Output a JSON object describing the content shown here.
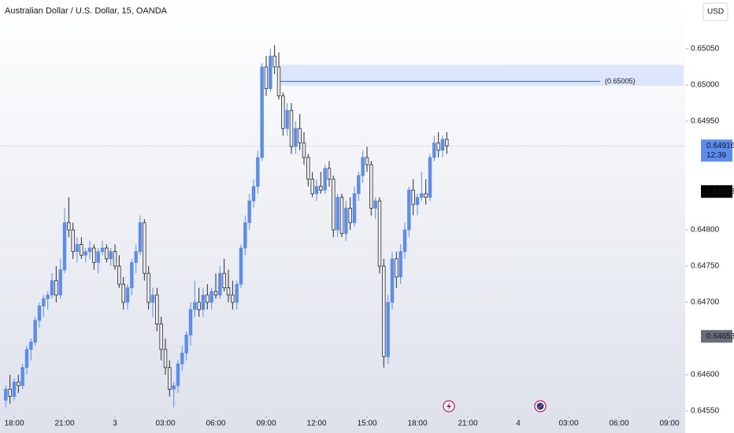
{
  "chart_data": {
    "type": "candlestick",
    "title": "Australian Dollar / U.S. Dollar, 15, OANDA",
    "currency": "USD",
    "up_color": "#5b8def",
    "down_color": "#eceef2",
    "outline_color": "#2a2a2a",
    "xlim": [
      -1.375,
      161.75
    ],
    "ylim": [
      0.645435,
      0.651174
    ],
    "xticks": [
      {
        "value": 2,
        "label": "18:00"
      },
      {
        "value": 14,
        "label": "21:00"
      },
      {
        "value": 26,
        "label": "3"
      },
      {
        "value": 38,
        "label": "03:00"
      },
      {
        "value": 50,
        "label": "06:00"
      },
      {
        "value": 62,
        "label": "09:00"
      },
      {
        "value": 74,
        "label": "12:00"
      },
      {
        "value": 86,
        "label": "15:00"
      },
      {
        "value": 98,
        "label": "18:00"
      },
      {
        "value": 110,
        "label": "21:00"
      },
      {
        "value": 122,
        "label": "4"
      },
      {
        "value": 134,
        "label": "03:00"
      },
      {
        "value": 146,
        "label": "06:00"
      },
      {
        "value": 158,
        "label": "09:00"
      }
    ],
    "yticks": [
      {
        "value": 0.6505,
        "label": "0.65050"
      },
      {
        "value": 0.65,
        "label": "0.65000"
      },
      {
        "value": 0.6495,
        "label": "0.64950"
      },
      {
        "value": 0.648,
        "label": "0.64800"
      },
      {
        "value": 0.6475,
        "label": "0.64750"
      },
      {
        "value": 0.647,
        "label": "0.64700"
      },
      {
        "value": 0.646,
        "label": "0.64600"
      },
      {
        "value": 0.6455,
        "label": "0.64550"
      }
    ],
    "open": [
      0.64565,
      0.6458,
      0.6457,
      0.6459,
      0.64585,
      0.6461,
      0.64635,
      0.64645,
      0.64675,
      0.64695,
      0.64705,
      0.6471,
      0.6473,
      0.6471,
      0.64745,
      0.6481,
      0.648,
      0.6477,
      0.6478,
      0.64765,
      0.6477,
      0.64775,
      0.64755,
      0.6477,
      0.64775,
      0.6476,
      0.6477,
      0.6475,
      0.64725,
      0.647,
      0.6472,
      0.64755,
      0.6477,
      0.6481,
      0.6474,
      0.647,
      0.6471,
      0.6467,
      0.64635,
      0.6461,
      0.6458,
      0.64585,
      0.64615,
      0.6463,
      0.64655,
      0.6469,
      0.647,
      0.6469,
      0.6471,
      0.647,
      0.64715,
      0.6471,
      0.6474,
      0.6472,
      0.6471,
      0.647,
      0.64725,
      0.64775,
      0.6481,
      0.6484,
      0.6486,
      0.649,
      0.65025,
      0.64995,
      0.6504,
      0.65025,
      0.64985,
      0.6494,
      0.64965,
      0.64915,
      0.6494,
      0.6492,
      0.649,
      0.6487,
      0.6485,
      0.6486,
      0.64855,
      0.64885,
      0.6487,
      0.648,
      0.64845,
      0.64795,
      0.6483,
      0.6481,
      0.6485,
      0.64875,
      0.649,
      0.6489,
      0.6483,
      0.6484,
      0.6475,
      0.64625,
      0.647,
      0.6476,
      0.64735,
      0.6477,
      0.648,
      0.64855,
      0.64835,
      0.64845,
      0.6485,
      0.64845,
      0.649,
      0.6492,
      0.6491,
      0.64925
    ],
    "high": [
      0.64585,
      0.646,
      0.64595,
      0.646,
      0.64615,
      0.6464,
      0.6465,
      0.6468,
      0.647,
      0.6471,
      0.64715,
      0.6474,
      0.6475,
      0.6476,
      0.6483,
      0.64845,
      0.6481,
      0.6479,
      0.6479,
      0.64775,
      0.64785,
      0.6478,
      0.64775,
      0.64785,
      0.6478,
      0.64775,
      0.6478,
      0.64765,
      0.64735,
      0.64725,
      0.6476,
      0.6478,
      0.6482,
      0.64815,
      0.6475,
      0.6472,
      0.6472,
      0.6468,
      0.6465,
      0.6462,
      0.6459,
      0.6462,
      0.6464,
      0.6466,
      0.647,
      0.6473,
      0.6472,
      0.6472,
      0.64725,
      0.6472,
      0.6474,
      0.6475,
      0.6476,
      0.64745,
      0.6473,
      0.6473,
      0.6478,
      0.6482,
      0.6485,
      0.6487,
      0.6491,
      0.6503,
      0.6504,
      0.6505,
      0.65055,
      0.65045,
      0.6499,
      0.64975,
      0.64975,
      0.6495,
      0.6496,
      0.64935,
      0.64905,
      0.6488,
      0.6487,
      0.6488,
      0.6489,
      0.64895,
      0.64875,
      0.6485,
      0.6485,
      0.6484,
      0.64845,
      0.6486,
      0.6488,
      0.6491,
      0.64915,
      0.64895,
      0.64845,
      0.64845,
      0.6476,
      0.6471,
      0.6477,
      0.6477,
      0.6478,
      0.6481,
      0.6486,
      0.6487,
      0.6485,
      0.6488,
      0.6487,
      0.64905,
      0.6493,
      0.64935,
      0.6493,
      0.64935
    ],
    "low": [
      0.64555,
      0.6456,
      0.64565,
      0.64575,
      0.6458,
      0.646,
      0.6462,
      0.6464,
      0.64665,
      0.6468,
      0.6469,
      0.64705,
      0.647,
      0.64705,
      0.6474,
      0.6479,
      0.6476,
      0.64755,
      0.6476,
      0.64755,
      0.6476,
      0.64745,
      0.6474,
      0.64765,
      0.64755,
      0.6475,
      0.64745,
      0.6472,
      0.6469,
      0.6469,
      0.6471,
      0.6474,
      0.64765,
      0.6473,
      0.6469,
      0.6468,
      0.6466,
      0.6462,
      0.646,
      0.6457,
      0.64555,
      0.64575,
      0.64605,
      0.6462,
      0.6464,
      0.6468,
      0.6468,
      0.6468,
      0.6469,
      0.6469,
      0.64705,
      0.64705,
      0.64715,
      0.647,
      0.6469,
      0.6469,
      0.6472,
      0.64765,
      0.648,
      0.6483,
      0.6485,
      0.64895,
      0.64985,
      0.6499,
      0.65015,
      0.6498,
      0.6493,
      0.6493,
      0.64905,
      0.64905,
      0.6491,
      0.6489,
      0.6486,
      0.64845,
      0.6484,
      0.6485,
      0.6485,
      0.6486,
      0.6479,
      0.6479,
      0.6479,
      0.64785,
      0.648,
      0.64805,
      0.6484,
      0.64865,
      0.6488,
      0.6482,
      0.64815,
      0.6474,
      0.6461,
      0.64615,
      0.6469,
      0.6472,
      0.64725,
      0.6476,
      0.6479,
      0.6482,
      0.6482,
      0.6484,
      0.64835,
      0.6484,
      0.64895,
      0.649,
      0.649,
      0.64905
    ],
    "close": [
      0.6458,
      0.6457,
      0.6459,
      0.64585,
      0.6461,
      0.64635,
      0.64645,
      0.64675,
      0.64695,
      0.64705,
      0.6471,
      0.6473,
      0.6471,
      0.64745,
      0.6481,
      0.648,
      0.6477,
      0.6478,
      0.64765,
      0.6477,
      0.64775,
      0.64755,
      0.6477,
      0.64775,
      0.6476,
      0.6477,
      0.6475,
      0.64725,
      0.647,
      0.6472,
      0.64755,
      0.6477,
      0.6481,
      0.6474,
      0.647,
      0.6471,
      0.6467,
      0.64635,
      0.6461,
      0.6458,
      0.64585,
      0.64615,
      0.6463,
      0.64655,
      0.6469,
      0.647,
      0.6469,
      0.6471,
      0.647,
      0.64715,
      0.6471,
      0.6474,
      0.6472,
      0.6471,
      0.647,
      0.64725,
      0.64775,
      0.6481,
      0.6484,
      0.6486,
      0.649,
      0.65025,
      0.64995,
      0.6504,
      0.65025,
      0.64985,
      0.6494,
      0.64965,
      0.64915,
      0.6494,
      0.6492,
      0.649,
      0.6487,
      0.6485,
      0.6486,
      0.64855,
      0.64885,
      0.6487,
      0.648,
      0.64845,
      0.64795,
      0.6483,
      0.6481,
      0.6485,
      0.64875,
      0.649,
      0.6489,
      0.6483,
      0.6484,
      0.6475,
      0.64625,
      0.647,
      0.6476,
      0.64735,
      0.6477,
      0.648,
      0.64855,
      0.64835,
      0.64845,
      0.6485,
      0.64845,
      0.649,
      0.6492,
      0.6491,
      0.64925,
      0.64916
    ],
    "annotation": {
      "label": "(0.65005)",
      "value": 0.65005,
      "zone": [
        0.64999,
        0.65028
      ],
      "start": 65
    },
    "price_labels": [
      {
        "value": 0.64916,
        "label": "0.64916",
        "sub": "12:39",
        "color": "#5b8def"
      },
      {
        "value": 0.64853,
        "label": "0.64853",
        "color": "#000000"
      },
      {
        "value": 0.64653,
        "label": "0.64653",
        "color": "#6a6d78"
      }
    ]
  }
}
